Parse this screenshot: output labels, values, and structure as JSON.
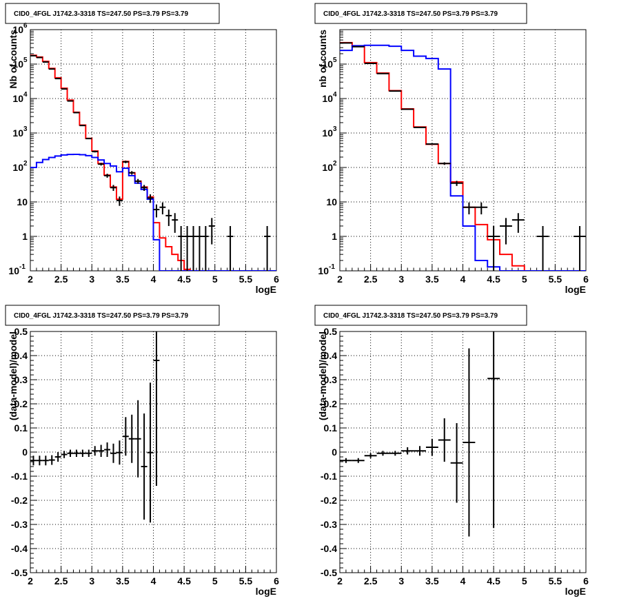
{
  "chart_data": [
    {
      "type": "line",
      "panel": "top-left",
      "title": "CID0_4FGL J1742.3-3318 TS=247.50 PS=3.79 PS=3.79",
      "xlabel": "logE",
      "ylabel": "Nb of counts",
      "xlim": [
        2,
        6
      ],
      "ylim": [
        0.1,
        1000000
      ],
      "yscale": "log",
      "grid": true,
      "xticks": [
        "2",
        "2.5",
        "3",
        "3.5",
        "4",
        "4.5",
        "5",
        "5.5",
        "6"
      ],
      "yticks": [
        {
          "v": 0.1,
          "base": "10",
          "exp": "-1"
        },
        {
          "v": 1,
          "label": "1"
        },
        {
          "v": 10,
          "label": "10"
        },
        {
          "v": 100,
          "base": "10",
          "exp": "2"
        },
        {
          "v": 1000,
          "base": "10",
          "exp": "3"
        },
        {
          "v": 10000,
          "base": "10",
          "exp": "4"
        },
        {
          "v": 100000,
          "base": "10",
          "exp": "5"
        },
        {
          "v": 1000000,
          "base": "10",
          "exp": "6"
        }
      ],
      "bin_edges": [
        2.0,
        2.1,
        2.2,
        2.3,
        2.4,
        2.5,
        2.6,
        2.7,
        2.8,
        2.9,
        3.0,
        3.1,
        3.2,
        3.3,
        3.4,
        3.5,
        3.6,
        3.7,
        3.8,
        3.9,
        4.0,
        4.1,
        4.2,
        4.3,
        4.4,
        4.5,
        4.6,
        4.7,
        4.8,
        4.9,
        5.0,
        5.1,
        5.2,
        5.3,
        5.4,
        5.5,
        5.6,
        5.7,
        5.8,
        5.9,
        6.0
      ],
      "series": [
        {
          "color": "#ff0000",
          "kind": "step",
          "values": [
            180000,
            160000,
            120000,
            75000,
            40000,
            20000,
            9000,
            4000,
            1700,
            700,
            300,
            130,
            60,
            27,
            12,
            150,
            70,
            40,
            27,
            14,
            2.5,
            0.9,
            0.5,
            0.3,
            0.2,
            0.11,
            0.1,
            0.1,
            0.1,
            0.1,
            0.1,
            0.1,
            0.1,
            0.1,
            0.1,
            0.1,
            0.1,
            0.1,
            0.1,
            0.1
          ]
        },
        {
          "color": "#0000ff",
          "kind": "step",
          "values": [
            100,
            140,
            170,
            195,
            215,
            230,
            238,
            240,
            235,
            220,
            195,
            165,
            130,
            110,
            75,
            95,
            58,
            35,
            23,
            12,
            0.8,
            0.1,
            0.1,
            0.1,
            0.1,
            0.1,
            0.1,
            0.1,
            0.1,
            0.1,
            0.1,
            0.1,
            0.1,
            0.1,
            0.1,
            0.1,
            0.1,
            0.1,
            0.1,
            0.1
          ]
        },
        {
          "color": "#000000",
          "kind": "points",
          "x": [
            2.05,
            2.15,
            2.25,
            2.35,
            2.45,
            2.55,
            2.65,
            2.75,
            2.85,
            2.95,
            3.05,
            3.15,
            3.25,
            3.35,
            3.45,
            3.55,
            3.65,
            3.75,
            3.85,
            3.95,
            4.05,
            4.15,
            4.25,
            4.35,
            4.45,
            4.55,
            4.65,
            4.75,
            4.85,
            4.95,
            5.25,
            5.85
          ],
          "y": [
            175000,
            155000,
            115000,
            72000,
            38000,
            19000,
            8500,
            3900,
            1650,
            690,
            290,
            125,
            58,
            26,
            11,
            145,
            70,
            40,
            26,
            13,
            6,
            7,
            4,
            3,
            1,
            1,
            1,
            1,
            1,
            2,
            1,
            1
          ],
          "xerr": 0.05
        }
      ]
    },
    {
      "type": "line",
      "panel": "top-right",
      "title": "CID0_4FGL J1742.3-3318 TS=247.50 PS=3.79 PS=3.79",
      "xlabel": "logE",
      "ylabel": "nb of counts",
      "xlim": [
        2,
        6
      ],
      "ylim": [
        0.1,
        1000000
      ],
      "yscale": "log",
      "grid": true,
      "xticks": [
        "2",
        "2.5",
        "3",
        "3.5",
        "4",
        "4.5",
        "5",
        "5.5",
        "6"
      ],
      "yticks": [
        {
          "v": 0.1,
          "base": "10",
          "exp": "-1"
        },
        {
          "v": 1,
          "label": "1"
        },
        {
          "v": 10,
          "label": "10"
        },
        {
          "v": 100,
          "base": "10",
          "exp": "2"
        },
        {
          "v": 1000,
          "base": "10",
          "exp": "3"
        },
        {
          "v": 10000,
          "base": "10",
          "exp": "4"
        },
        {
          "v": 100000,
          "base": "10",
          "exp": "5"
        }
      ],
      "bin_edges": [
        2.0,
        2.2,
        2.4,
        2.6,
        2.8,
        3.0,
        3.2,
        3.4,
        3.6,
        3.8,
        4.0,
        4.2,
        4.4,
        4.6,
        4.8,
        5.0,
        5.2,
        5.4,
        5.6,
        5.8,
        6.0
      ],
      "series": [
        {
          "color": "#ff0000",
          "kind": "step",
          "values": [
            420000,
            330000,
            110000,
            55000,
            17000,
            5000,
            1500,
            470,
            130,
            38,
            7,
            2.2,
            0.8,
            0.3,
            0.14,
            0.1,
            0.1,
            0.1,
            0.1,
            0.1
          ]
        },
        {
          "color": "#0000ff",
          "kind": "step",
          "values": [
            250000,
            340000,
            350000,
            350000,
            330000,
            250000,
            170000,
            145000,
            72000,
            15,
            2,
            0.2,
            0.13,
            0.1,
            0.1,
            0.1,
            0.1,
            0.1,
            0.1,
            0.1
          ],
          "note": ""
        },
        {
          "color": "#000000",
          "kind": "points",
          "x": [
            2.1,
            2.3,
            2.5,
            2.7,
            2.9,
            3.1,
            3.3,
            3.5,
            3.7,
            3.9,
            4.1,
            4.3,
            4.5,
            4.7,
            4.9,
            5.3,
            5.9
          ],
          "y": [
            410000,
            320000,
            105000,
            53000,
            16500,
            4900,
            1450,
            480,
            130,
            35,
            7,
            7,
            1,
            2,
            3,
            1,
            1
          ],
          "xerr": 0.1
        }
      ]
    },
    {
      "type": "scatter",
      "panel": "bottom-left",
      "title": "CID0_4FGL J1742.3-3318 TS=247.50 PS=3.79 PS=3.79",
      "xlabel": "logE",
      "ylabel": "(data-model)/model",
      "xlim": [
        2,
        6
      ],
      "ylim": [
        -0.5,
        0.5
      ],
      "grid": true,
      "xticks": [
        "2",
        "2.5",
        "3",
        "3.5",
        "4",
        "4.5",
        "5",
        "5.5",
        "6"
      ],
      "yticks": [
        "-0.5",
        "-0.4",
        "-0.3",
        "-0.2",
        "-0.1",
        "0",
        "0.1",
        "0.2",
        "0.3",
        "0.4",
        "0.5"
      ],
      "x": [
        2.05,
        2.15,
        2.25,
        2.35,
        2.45,
        2.55,
        2.65,
        2.75,
        2.85,
        2.95,
        3.05,
        3.15,
        3.25,
        3.35,
        3.45,
        3.55,
        3.65,
        3.75,
        3.85,
        3.95,
        4.05
      ],
      "y": [
        -0.035,
        -0.035,
        -0.035,
        -0.033,
        -0.02,
        -0.01,
        -0.005,
        -0.005,
        -0.005,
        -0.005,
        0.005,
        0.005,
        0.01,
        -0.005,
        -0.002,
        0.065,
        0.055,
        0.055,
        -0.06,
        -0.002,
        0.38
      ],
      "yerr": [
        0.02,
        0.02,
        0.02,
        0.02,
        0.02,
        0.015,
        0.015,
        0.015,
        0.015,
        0.015,
        0.02,
        0.025,
        0.03,
        0.04,
        0.05,
        0.08,
        0.1,
        0.16,
        0.22,
        0.29,
        0.52
      ],
      "xerr": 0.05
    },
    {
      "type": "scatter",
      "panel": "bottom-right",
      "title": "CID0_4FGL J1742.3-3318 TS=247.50 PS=3.79 PS=3.79",
      "xlabel": "logE",
      "ylabel": "(data-model)/model",
      "xlim": [
        2,
        6
      ],
      "ylim": [
        -0.5,
        0.5
      ],
      "grid": true,
      "xticks": [
        "2",
        "2.5",
        "3",
        "3.5",
        "4",
        "4.5",
        "5",
        "5.5",
        "6"
      ],
      "yticks": [
        "-0.5",
        "-0.4",
        "-0.3",
        "-0.2",
        "-0.1",
        "0",
        "0.1",
        "0.2",
        "0.3",
        "0.4",
        "0.5"
      ],
      "x": [
        2.1,
        2.3,
        2.5,
        2.7,
        2.9,
        3.1,
        3.3,
        3.5,
        3.7,
        3.9,
        4.1,
        4.5
      ],
      "y": [
        -0.035,
        -0.035,
        -0.015,
        -0.005,
        -0.005,
        0.005,
        0.005,
        0.02,
        0.05,
        -0.045,
        0.04,
        0.305
      ],
      "yerr": [
        0.01,
        0.01,
        0.01,
        0.01,
        0.01,
        0.015,
        0.02,
        0.035,
        0.09,
        0.165,
        0.39,
        0.62
      ],
      "xerr": 0.1
    }
  ]
}
